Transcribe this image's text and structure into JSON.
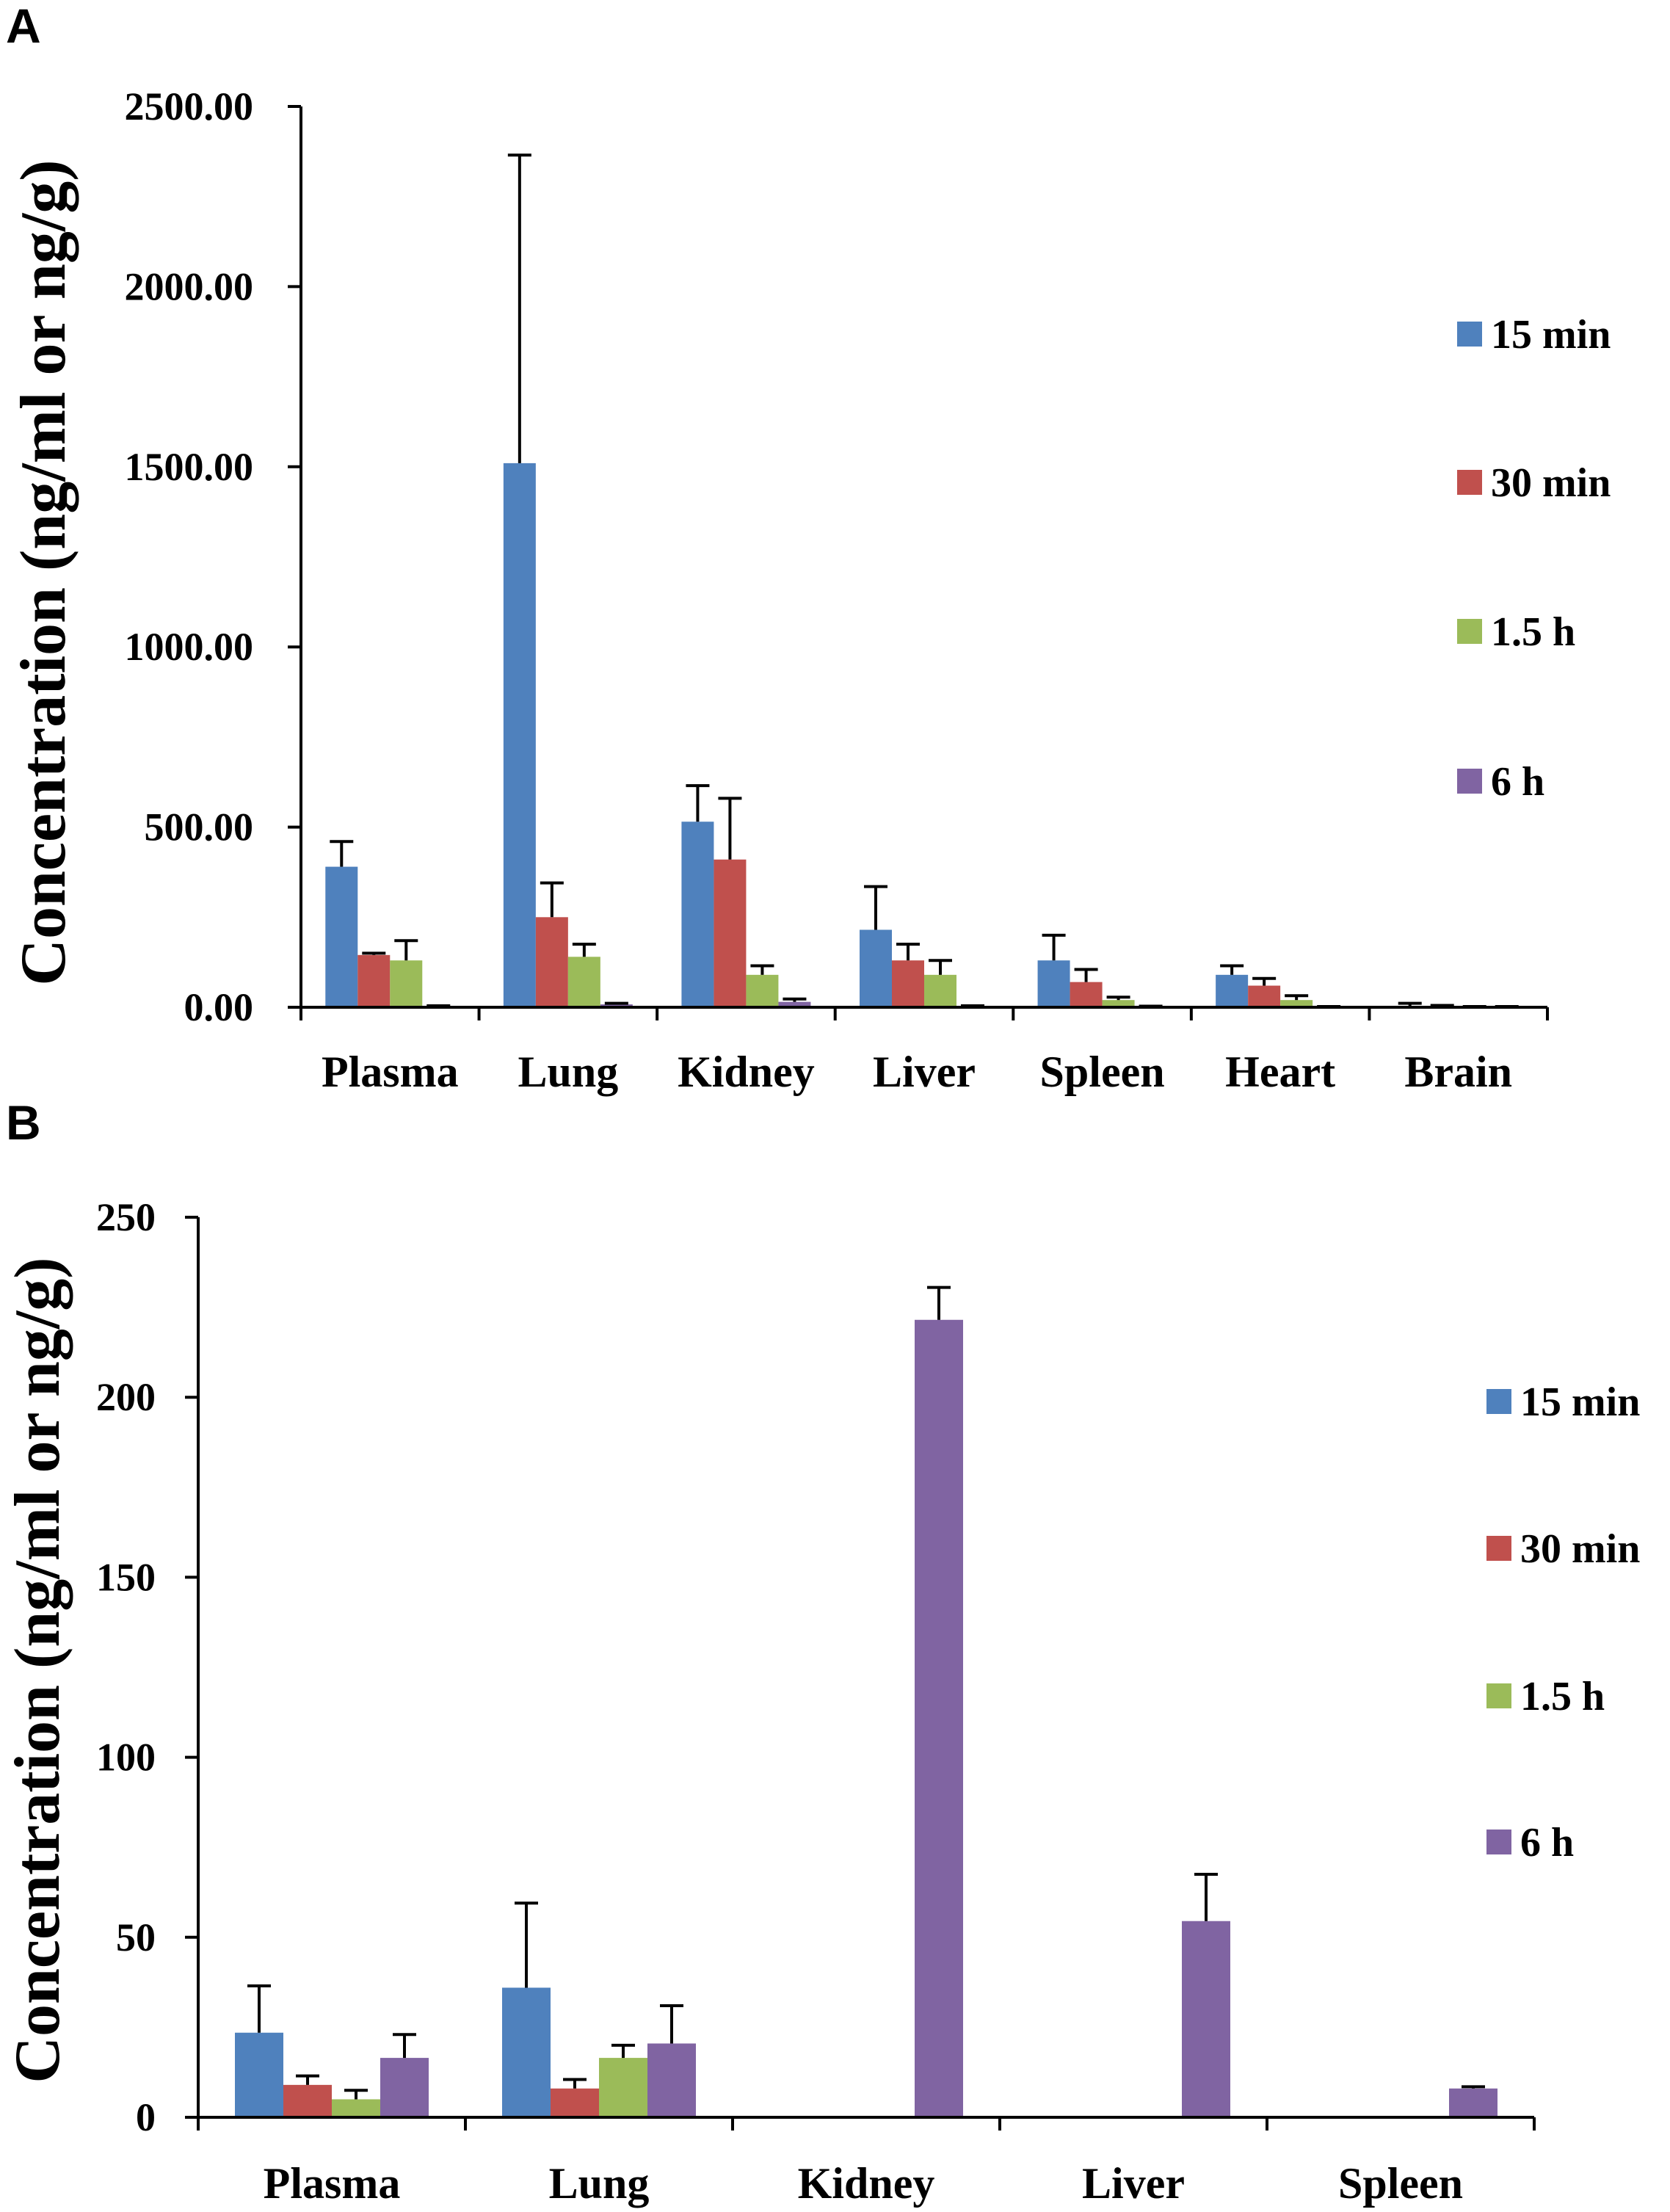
{
  "chart_data": [
    {
      "panel": "A",
      "type": "bar",
      "categories": [
        "Plasma",
        "Lung",
        "Kidney",
        "Liver",
        "Spleen",
        "Heart",
        "Brain"
      ],
      "ylabel": "Concentration (ng/ml or ng/g)",
      "xlabel": "",
      "ylim": [
        0,
        2500
      ],
      "yticks": [
        "0.00",
        "500.00",
        "1000.00",
        "1500.00",
        "2000.00",
        "2500.00"
      ],
      "ytick_values": [
        0,
        500,
        1000,
        1500,
        2000,
        2500
      ],
      "legend_position": "right",
      "series": [
        {
          "name": "15 min",
          "color": "#4F81BD",
          "values": [
            390,
            1510,
            515,
            215,
            130,
            90,
            3
          ],
          "errors": [
            70,
            855,
            100,
            120,
            70,
            25,
            8
          ]
        },
        {
          "name": "30 min",
          "color": "#C0504D",
          "values": [
            145,
            250,
            410,
            130,
            70,
            60,
            2
          ],
          "errors": [
            5,
            95,
            170,
            45,
            35,
            20,
            3
          ]
        },
        {
          "name": "1.5 h",
          "color": "#9BBB59",
          "values": [
            130,
            140,
            90,
            90,
            20,
            20,
            1
          ],
          "errors": [
            55,
            35,
            25,
            40,
            8,
            12,
            1
          ]
        },
        {
          "name": "6 h",
          "color": "#8064A2",
          "values": [
            3,
            8,
            15,
            3,
            2,
            1,
            1
          ],
          "errors": [
            1,
            3,
            8,
            1,
            1,
            1,
            1
          ]
        }
      ]
    },
    {
      "panel": "B",
      "type": "bar",
      "categories": [
        "Plasma",
        "Lung",
        "Kidney",
        "Liver",
        "Spleen"
      ],
      "ylabel": "Concentration (ng/ml or ng/g)",
      "xlabel": "",
      "ylim": [
        0,
        250
      ],
      "yticks": [
        "0",
        "50",
        "100",
        "150",
        "200",
        "250"
      ],
      "ytick_values": [
        0,
        50,
        100,
        150,
        200,
        250
      ],
      "legend_position": "right",
      "series": [
        {
          "name": "15 min",
          "color": "#4F81BD",
          "values": [
            23.5,
            36,
            0,
            0,
            0
          ],
          "errors": [
            13,
            23.5,
            0,
            0,
            0
          ]
        },
        {
          "name": "30 min",
          "color": "#C0504D",
          "values": [
            9,
            8,
            0,
            0,
            0
          ],
          "errors": [
            2.5,
            2.5,
            0,
            0,
            0
          ]
        },
        {
          "name": "1.5 h",
          "color": "#9BBB59",
          "values": [
            5,
            16.5,
            0,
            0,
            0
          ],
          "errors": [
            2.5,
            3.5,
            0,
            0,
            0
          ]
        },
        {
          "name": "6 h",
          "color": "#8064A2",
          "values": [
            16.5,
            20.5,
            221.5,
            54.5,
            8
          ],
          "errors": [
            6.5,
            10.5,
            9,
            13,
            0.5
          ]
        }
      ]
    }
  ]
}
